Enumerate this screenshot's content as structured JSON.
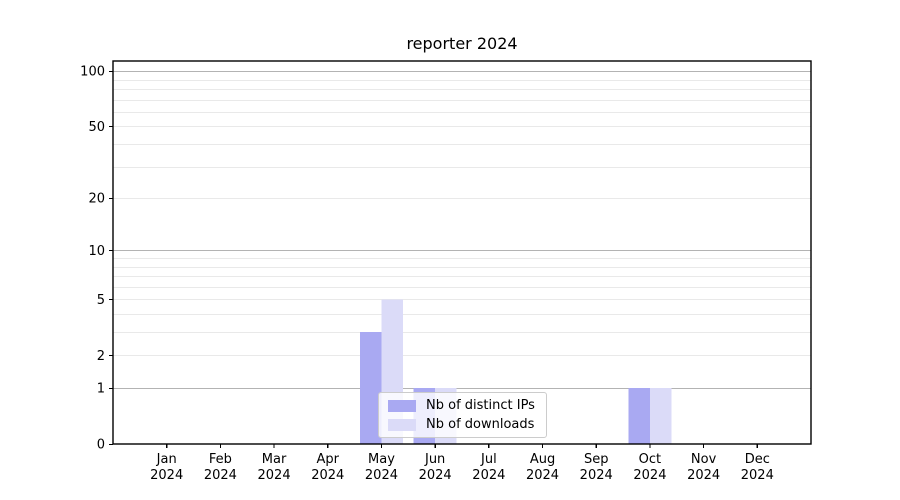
{
  "chart_data": {
    "type": "bar",
    "title": "reporter 2024",
    "categories": [
      "Jan",
      "Feb",
      "Mar",
      "Apr",
      "May",
      "Jun",
      "Jul",
      "Aug",
      "Sep",
      "Oct",
      "Nov",
      "Dec"
    ],
    "x_tick_year": "2024",
    "series": [
      {
        "name": "Nb of distinct IPs",
        "color": "#a9a9f2",
        "values": [
          0,
          0,
          0,
          0,
          3,
          1,
          0,
          0,
          0,
          1,
          0,
          0
        ]
      },
      {
        "name": "Nb of downloads",
        "color": "#dbdbf8",
        "values": [
          0,
          0,
          0,
          0,
          5,
          1,
          0,
          0,
          0,
          1,
          0,
          0
        ]
      }
    ],
    "y_axis": {
      "scale": "log10(value+1)",
      "tick_values": [
        0,
        1,
        2,
        5,
        10,
        20,
        50,
        100
      ],
      "major_gridlines": [
        1,
        10,
        100
      ],
      "minor_gridlines": [
        2,
        3,
        4,
        5,
        6,
        7,
        8,
        9,
        20,
        30,
        40,
        50,
        60,
        70,
        80,
        90
      ],
      "ylim": [
        0,
        114
      ]
    },
    "xlim": [
      -1,
      12
    ],
    "bar_width_units": 0.4,
    "grid": "horizontal-only",
    "legend": {
      "position": "lower-center"
    },
    "colors": {
      "background": "#ffffff",
      "axis": "#000000",
      "text": "#000000",
      "major_grid": "#b3b3b3",
      "minor_grid": "#e9e9e9",
      "legend_border": "#cccccc"
    }
  }
}
